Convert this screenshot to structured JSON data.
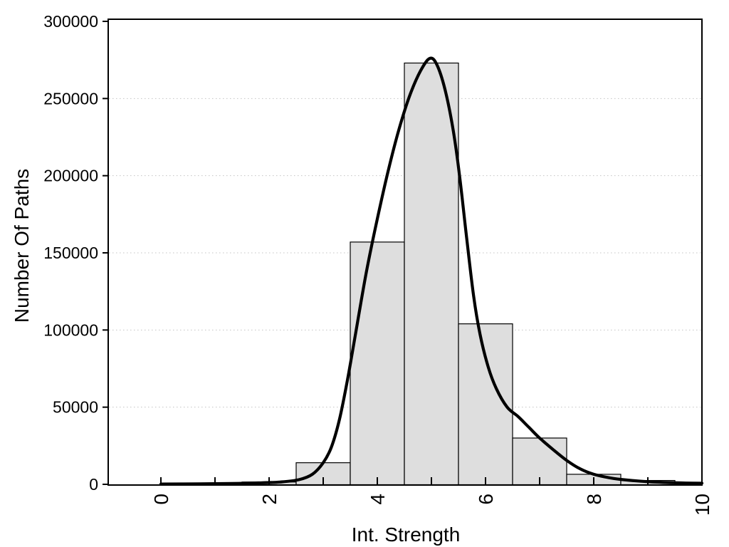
{
  "figure": {
    "background": "#ffffff",
    "axis_color": "#000000",
    "grid_color": "#c3c3c3",
    "bar_fill": "#dedede",
    "bar_stroke": "#000000",
    "curve_color": "#000000",
    "text_color": "#000000"
  },
  "chart_data": {
    "type": "bar",
    "subtype": "histogram-with-density-curve",
    "title": "",
    "xlabel": "Int. Strength",
    "ylabel": "Number Of Paths",
    "xlim": [
      0,
      10
    ],
    "ylim": [
      0,
      300000
    ],
    "grid": "dotted horizontal at 50000 steps",
    "legend": "none",
    "x_tick_positions": [
      0,
      1,
      2,
      3,
      4,
      5,
      6,
      7,
      8,
      9,
      10
    ],
    "x_tick_labels": [
      {
        "value": 0,
        "label": "0"
      },
      {
        "value": 2,
        "label": "2"
      },
      {
        "value": 4,
        "label": "4"
      },
      {
        "value": 6,
        "label": "6"
      },
      {
        "value": 8,
        "label": "8"
      },
      {
        "value": 10,
        "label": "10"
      }
    ],
    "y_ticks": [
      {
        "value": 0,
        "label": "0"
      },
      {
        "value": 50000,
        "label": "50000"
      },
      {
        "value": 100000,
        "label": "100000"
      },
      {
        "value": 150000,
        "label": "150000"
      },
      {
        "value": 200000,
        "label": "200000"
      },
      {
        "value": 250000,
        "label": "250000"
      },
      {
        "value": 300000,
        "label": "300000"
      }
    ],
    "gridline_values": [
      50000,
      100000,
      150000,
      200000,
      250000
    ],
    "bin_width": 1,
    "categories": [
      2,
      3,
      4,
      5,
      6,
      7,
      8,
      9,
      10
    ],
    "values": [
      1500,
      14000,
      157000,
      273000,
      104000,
      30000,
      6500,
      2500,
      800
    ],
    "bars": [
      {
        "x_from": 1.5,
        "x_to": 2.5,
        "count": 1500
      },
      {
        "x_from": 2.5,
        "x_to": 3.5,
        "count": 14000
      },
      {
        "x_from": 3.5,
        "x_to": 4.5,
        "count": 157000
      },
      {
        "x_from": 4.5,
        "x_to": 5.5,
        "count": 273000
      },
      {
        "x_from": 5.5,
        "x_to": 6.5,
        "count": 104000
      },
      {
        "x_from": 6.5,
        "x_to": 7.5,
        "count": 30000
      },
      {
        "x_from": 7.5,
        "x_to": 8.5,
        "count": 6500
      },
      {
        "x_from": 8.5,
        "x_to": 9.5,
        "count": 2500
      },
      {
        "x_from": 9.5,
        "x_to": 10.0,
        "count": 800
      }
    ],
    "density_curve": {
      "peak_x": 4.97,
      "peak_y": 276000,
      "points": [
        [
          0.0,
          200
        ],
        [
          0.7,
          300
        ],
        [
          1.3,
          500
        ],
        [
          1.8,
          900
        ],
        [
          2.2,
          1500
        ],
        [
          2.55,
          3000
        ],
        [
          2.8,
          6500
        ],
        [
          3.0,
          14000
        ],
        [
          3.15,
          24000
        ],
        [
          3.3,
          42000
        ],
        [
          3.45,
          68000
        ],
        [
          3.6,
          98000
        ],
        [
          3.8,
          138000
        ],
        [
          4.0,
          172000
        ],
        [
          4.2,
          203000
        ],
        [
          4.4,
          230000
        ],
        [
          4.6,
          252000
        ],
        [
          4.8,
          268000
        ],
        [
          4.97,
          276000
        ],
        [
          5.1,
          272000
        ],
        [
          5.25,
          256000
        ],
        [
          5.4,
          230000
        ],
        [
          5.52,
          200000
        ],
        [
          5.65,
          160000
        ],
        [
          5.78,
          122000
        ],
        [
          5.9,
          97000
        ],
        [
          6.05,
          76000
        ],
        [
          6.2,
          62000
        ],
        [
          6.4,
          50000
        ],
        [
          6.6,
          44000
        ],
        [
          6.8,
          37000
        ],
        [
          7.0,
          30000
        ],
        [
          7.25,
          22500
        ],
        [
          7.5,
          15500
        ],
        [
          7.75,
          10000
        ],
        [
          8.0,
          6500
        ],
        [
          8.3,
          4200
        ],
        [
          8.6,
          2800
        ],
        [
          9.0,
          1700
        ],
        [
          9.4,
          1100
        ],
        [
          9.7,
          850
        ],
        [
          10.0,
          700
        ]
      ]
    }
  }
}
